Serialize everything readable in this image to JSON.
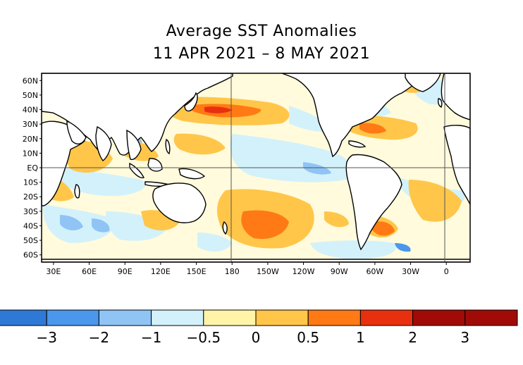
{
  "title": {
    "line1": "Average SST Anomalies",
    "line2": "11 APR 2021 – 8 MAY 2021"
  },
  "map": {
    "lat_labels": [
      "60N",
      "50N",
      "40N",
      "30N",
      "20N",
      "10N",
      "EQ",
      "10S",
      "20S",
      "30S",
      "40S",
      "50S",
      "60S"
    ],
    "lat_values": [
      60,
      50,
      40,
      30,
      20,
      10,
      0,
      -10,
      -20,
      -30,
      -40,
      -50,
      -60
    ],
    "lon_labels": [
      "30E",
      "60E",
      "90E",
      "120E",
      "150E",
      "180",
      "150W",
      "120W",
      "90W",
      "60W",
      "30W",
      "0"
    ],
    "lon_values": [
      30,
      60,
      90,
      120,
      150,
      180,
      210,
      240,
      270,
      300,
      330,
      360
    ],
    "lon_range": [
      20,
      380
    ],
    "lat_range": [
      -65,
      65
    ]
  },
  "colorbar": {
    "tick_labels": [
      "−3",
      "−2",
      "−1",
      "−0.5",
      "0",
      "0.5",
      "1",
      "2",
      "3"
    ],
    "colors": [
      "#2f79d6",
      "#4a97eb",
      "#8fc4f5",
      "#d2f1fb",
      "#fff4a8",
      "#ffc64a",
      "#ff7a14",
      "#e8300f",
      "#a10b07"
    ]
  }
}
